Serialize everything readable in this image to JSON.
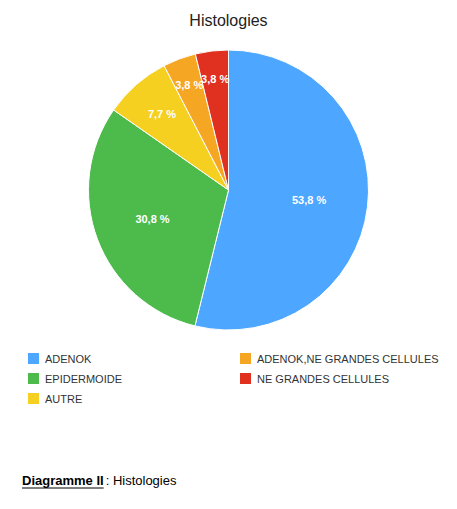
{
  "chart_data": {
    "type": "pie",
    "title": "Histologies",
    "categories": [
      "ADENOK",
      "EPIDERMOIDE",
      "AUTRE",
      "ADENOK,NE GRANDES CELLULES",
      "NE GRANDES CELLULES"
    ],
    "values": [
      53.8,
      30.8,
      7.7,
      3.8,
      3.8
    ],
    "value_labels": [
      "53,8 %",
      "30,8 %",
      "7,7 %",
      "3,8 %",
      "3,8 %"
    ],
    "colors": [
      "#4da6ff",
      "#4cbb4c",
      "#f5d020",
      "#f5a623",
      "#e03020"
    ],
    "data_labels": true,
    "legend": "bottom",
    "annotations": [
      "Diagramme II",
      ": Histologies"
    ]
  }
}
